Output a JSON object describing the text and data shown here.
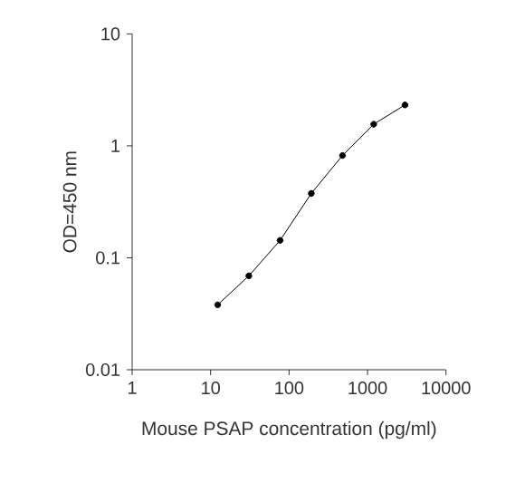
{
  "chart_data": {
    "type": "line",
    "xlabel": "Mouse PSAP concentration (pg/ml)",
    "ylabel": "OD=450 nm",
    "log": "xy",
    "marker": "circle",
    "x": [
      12.3,
      30.7,
      76.8,
      192,
      480,
      1200,
      3000
    ],
    "series": [
      {
        "color": "#000000",
        "values": [
          0.038,
          0.069,
          0.143,
          0.376,
          0.82,
          1.56,
          2.32
        ]
      }
    ],
    "xlim": [
      1,
      10000
    ],
    "ylim": [
      0.01,
      10
    ],
    "xticks": [
      1,
      10,
      100,
      1000,
      10000
    ],
    "yticks": [
      0.01,
      0.1,
      1,
      10
    ]
  }
}
